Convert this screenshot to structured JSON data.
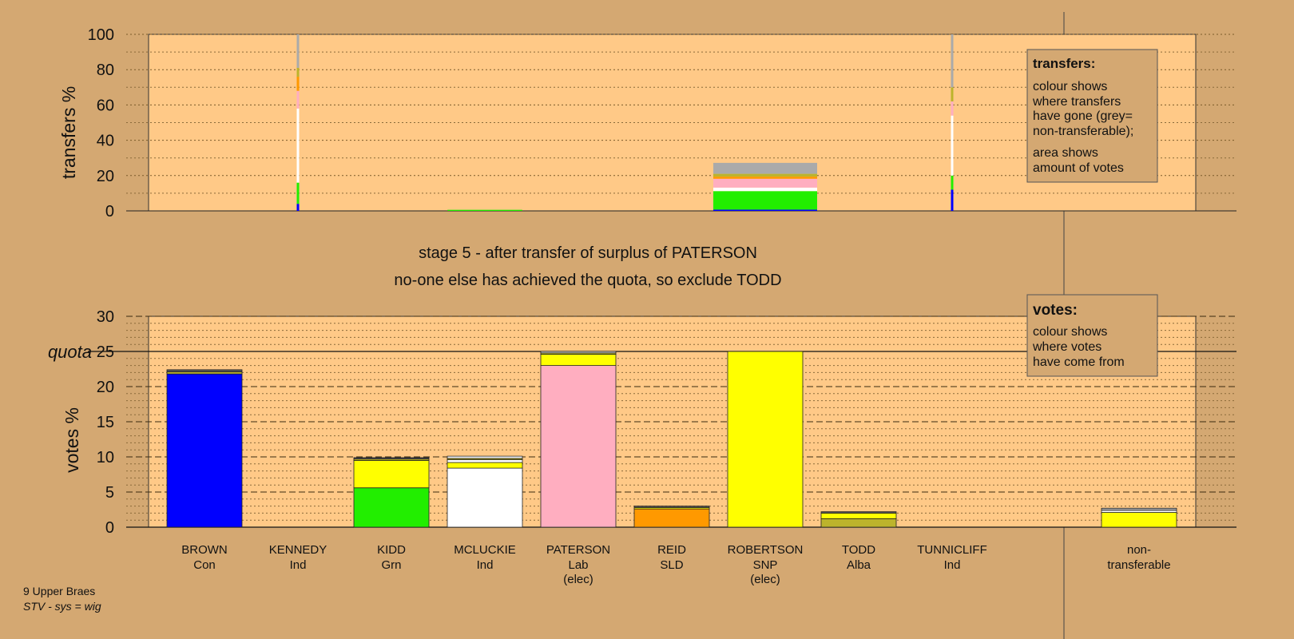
{
  "colors": {
    "page_bg": "#d4a872",
    "plot_bg": "#ffc987",
    "blue": "#0000ff",
    "green": "#22ee00",
    "white": "#ffffff",
    "pink": "#ffaec0",
    "orange": "#ff9900",
    "yellow": "#ffff00",
    "olive": "#bcb42c",
    "grey": "#aaaaaa",
    "dark": "#555555"
  },
  "footer": {
    "ward": "9 Upper Braes",
    "system": "STV - sys = wig"
  },
  "stage_text": {
    "line1": "stage 5 - after transfer of surplus of PATERSON",
    "line2": "no-one else has achieved the quota, so exclude TODD"
  },
  "legend_transfers": {
    "title": "transfers:",
    "lines1": [
      "colour shows",
      "where transfers",
      "have gone (grey=",
      "non-transferable);"
    ],
    "lines2": [
      "area shows",
      "amount of votes"
    ]
  },
  "legend_votes": {
    "title": "votes:",
    "lines": [
      "colour shows",
      "where votes",
      "have come from"
    ]
  },
  "chart_data": [
    {
      "type": "bar",
      "role": "transfers",
      "ylabel": "transfers %",
      "ylim": [
        0,
        100
      ],
      "yticks": [
        "0",
        "20",
        "40",
        "60",
        "80",
        "100"
      ],
      "grid": true,
      "categories": [
        "BROWN",
        "KENNEDY",
        "KIDD",
        "MCLUCKIE",
        "PATERSON",
        "REID",
        "ROBERTSON",
        "TODD",
        "TUNNICLIFF",
        "non-transferable"
      ],
      "bars": [
        {
          "category": "KENNEDY",
          "width_fraction": 0.02,
          "segments": [
            {
              "color": "blue",
              "value": 4
            },
            {
              "color": "green",
              "value": 12
            },
            {
              "color": "white",
              "value": 42
            },
            {
              "color": "pink",
              "value": 10
            },
            {
              "color": "orange",
              "value": 8
            },
            {
              "color": "olive",
              "value": 5
            },
            {
              "color": "grey",
              "value": 19
            }
          ]
        },
        {
          "category": "MCLUCKIE",
          "width_fraction": 0.72,
          "segments": [
            {
              "color": "green",
              "value": 0.6
            }
          ]
        },
        {
          "category": "ROBERTSON",
          "width_fraction": 1.0,
          "segments": [
            {
              "color": "blue",
              "value": 0.7
            },
            {
              "color": "green",
              "value": 10.5
            },
            {
              "color": "white",
              "value": 2
            },
            {
              "color": "pink",
              "value": 5
            },
            {
              "color": "orange",
              "value": 1.2
            },
            {
              "color": "olive",
              "value": 1.6
            },
            {
              "color": "grey",
              "value": 6.2
            }
          ]
        },
        {
          "category": "TUNNICLIFF",
          "width_fraction": 0.02,
          "segments": [
            {
              "color": "blue",
              "value": 12
            },
            {
              "color": "green",
              "value": 8
            },
            {
              "color": "white",
              "value": 34
            },
            {
              "color": "pink",
              "value": 8
            },
            {
              "color": "olive",
              "value": 8
            },
            {
              "color": "grey",
              "value": 30
            }
          ]
        }
      ]
    },
    {
      "type": "bar",
      "role": "votes",
      "ylabel": "votes %",
      "ylim": [
        0,
        30
      ],
      "yticks": [
        "0",
        "5",
        "10",
        "15",
        "20",
        "25",
        "30"
      ],
      "quota": 25,
      "quota_label": "quota",
      "grid": true,
      "categories": [
        {
          "name": "BROWN",
          "party": "Con",
          "note": ""
        },
        {
          "name": "KENNEDY",
          "party": "Ind",
          "note": ""
        },
        {
          "name": "KIDD",
          "party": "Grn",
          "note": ""
        },
        {
          "name": "MCLUCKIE",
          "party": "Ind",
          "note": ""
        },
        {
          "name": "PATERSON",
          "party": "Lab",
          "note": "(elec)"
        },
        {
          "name": "REID",
          "party": "SLD",
          "note": ""
        },
        {
          "name": "ROBERTSON",
          "party": "SNP",
          "note": "(elec)"
        },
        {
          "name": "TODD",
          "party": "Alba",
          "note": ""
        },
        {
          "name": "TUNNICLIFF",
          "party": "Ind",
          "note": ""
        },
        {
          "name": "non-",
          "party": "transferable",
          "note": ""
        }
      ],
      "bars": [
        {
          "category": "BROWN",
          "segments": [
            {
              "color": "blue",
              "value": 21.8
            },
            {
              "color": "olive",
              "value": 0.3
            },
            {
              "color": "dark",
              "value": 0.3
            }
          ]
        },
        {
          "category": "KENNEDY",
          "segments": []
        },
        {
          "category": "KIDD",
          "segments": [
            {
              "color": "green",
              "value": 5.6
            },
            {
              "color": "yellow",
              "value": 3.9
            },
            {
              "color": "olive",
              "value": 0.2
            },
            {
              "color": "dark",
              "value": 0.2
            }
          ]
        },
        {
          "category": "MCLUCKIE",
          "segments": [
            {
              "color": "white",
              "value": 8.4
            },
            {
              "color": "yellow",
              "value": 0.8
            },
            {
              "color": "white",
              "value": 0.4
            },
            {
              "color": "olive",
              "value": 0.2
            },
            {
              "color": "white",
              "value": 0.3
            }
          ]
        },
        {
          "category": "PATERSON",
          "segments": [
            {
              "color": "pink",
              "value": 23.0
            },
            {
              "color": "yellow",
              "value": 1.6
            },
            {
              "color": "olive",
              "value": 0.2
            },
            {
              "color": "white",
              "value": 0.2
            }
          ]
        },
        {
          "category": "REID",
          "segments": [
            {
              "color": "orange",
              "value": 2.6
            },
            {
              "color": "yellow",
              "value": 0.2
            },
            {
              "color": "dark",
              "value": 0.2
            }
          ]
        },
        {
          "category": "ROBERTSON",
          "segments": [
            {
              "color": "yellow",
              "value": 25.0
            }
          ]
        },
        {
          "category": "TODD",
          "segments": [
            {
              "color": "olive",
              "value": 1.2
            },
            {
              "color": "yellow",
              "value": 0.8
            },
            {
              "color": "dark",
              "value": 0.2
            }
          ]
        },
        {
          "category": "TUNNICLIFF",
          "segments": []
        },
        {
          "category": "non-",
          "segments": [
            {
              "color": "yellow",
              "value": 2.1
            },
            {
              "color": "white",
              "value": 0.3
            },
            {
              "color": "grey",
              "value": 0.3
            }
          ]
        }
      ]
    }
  ]
}
